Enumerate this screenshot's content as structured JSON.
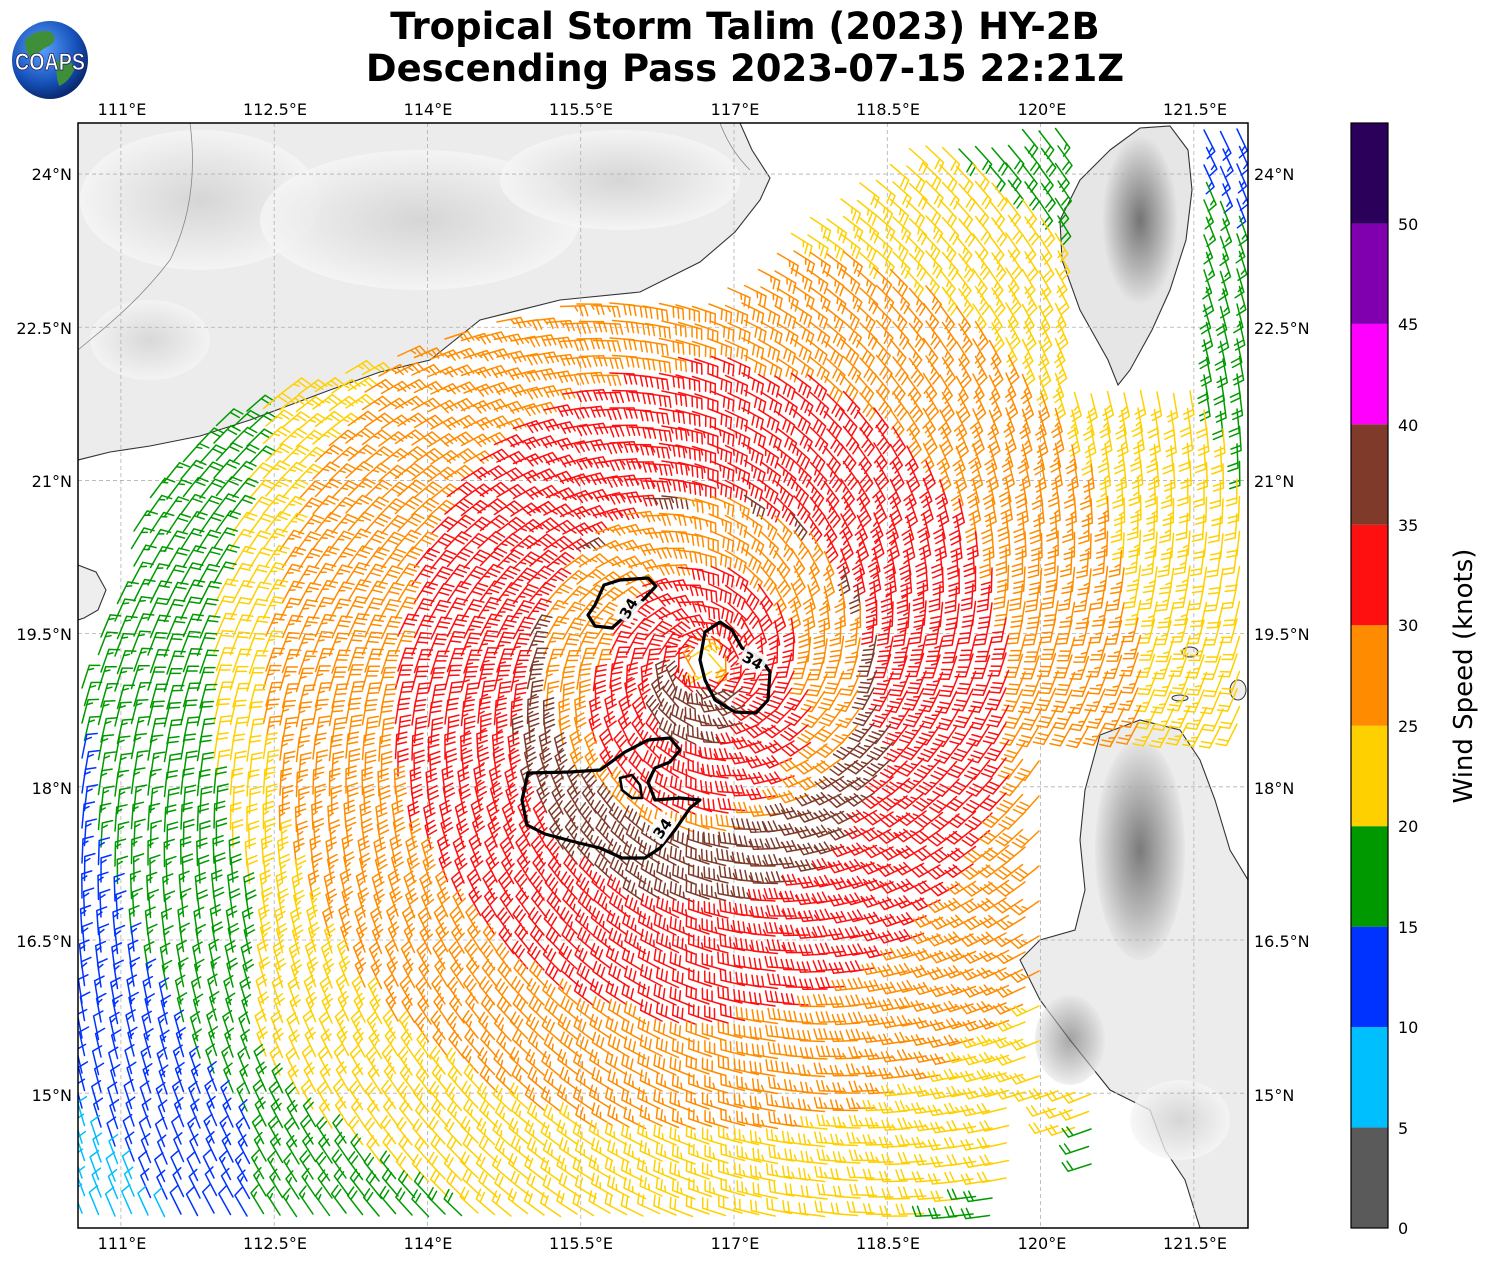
{
  "title_line1": "Tropical Storm Talim (2023) HY-2B",
  "title_line2": "Descending Pass 2023-07-15 22:21Z",
  "logo_text": "COAPS",
  "map": {
    "lon_ticks": [
      "111°E",
      "112.5°E",
      "114°E",
      "115.5°E",
      "117°E",
      "118.5°E",
      "120°E",
      "121.5°E"
    ],
    "lat_ticks": [
      "24°N",
      "22.5°N",
      "21°N",
      "19.5°N",
      "18°N",
      "16.5°N",
      "15°N"
    ],
    "lon_range": [
      110.58,
      122.03
    ],
    "lat_range": [
      13.68,
      24.5
    ],
    "storm_center": {
      "lon": 116.7,
      "lat": 19.2
    },
    "contour_label": "34",
    "contour_level_knots": 34
  },
  "colorbar": {
    "label": "Wind Speed (knots)",
    "ticks": [
      "0",
      "5",
      "10",
      "15",
      "20",
      "25",
      "30",
      "35",
      "40",
      "45",
      "50"
    ],
    "bins": [
      {
        "from": 0,
        "to": 5,
        "color": "#5a5a5a"
      },
      {
        "from": 5,
        "to": 10,
        "color": "#00bfff"
      },
      {
        "from": 10,
        "to": 15,
        "color": "#0033ff"
      },
      {
        "from": 15,
        "to": 20,
        "color": "#009a00"
      },
      {
        "from": 20,
        "to": 25,
        "color": "#ffd000"
      },
      {
        "from": 25,
        "to": 30,
        "color": "#ff8c00"
      },
      {
        "from": 30,
        "to": 35,
        "color": "#ff1010"
      },
      {
        "from": 35,
        "to": 40,
        "color": "#7f3a2a"
      },
      {
        "from": 40,
        "to": 45,
        "color": "#ff00ff"
      },
      {
        "from": 45,
        "to": 50,
        "color": "#8000b0"
      },
      {
        "from": 50,
        "to": 55,
        "color": "#2a005a"
      }
    ]
  }
}
